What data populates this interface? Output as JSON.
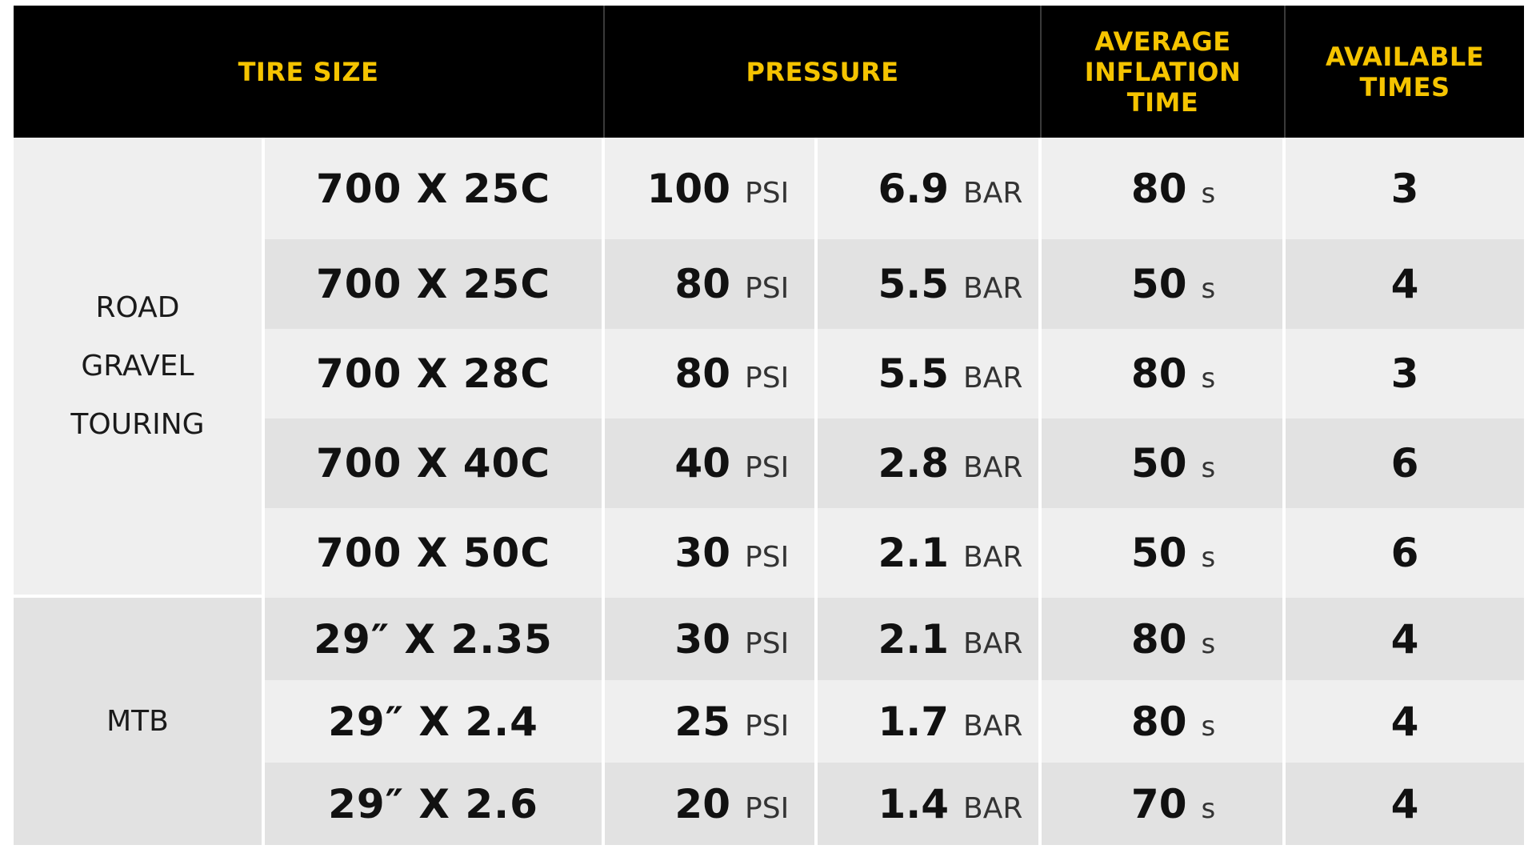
{
  "headers": {
    "tire_size": "TIRE SIZE",
    "pressure": "PRESSURE",
    "avg_time_1": "AVERAGE",
    "avg_time_2": "INFLATION",
    "avg_time_3": "TIME",
    "avail_1": "AVAILABLE",
    "avail_2": "TIMES"
  },
  "categories": {
    "road_1": "ROAD",
    "road_2": "GRAVEL",
    "road_3": "TOURING",
    "mtb": "MTB"
  },
  "rows": [
    {
      "size": "700 X 25C",
      "psi": "100",
      "psi_unit": "PSI",
      "bar": "6.9",
      "bar_unit": "BAR",
      "time": "80",
      "time_unit": "s",
      "avail": "3"
    },
    {
      "size": "700 X 25C",
      "psi": "80",
      "psi_unit": "PSI",
      "bar": "5.5",
      "bar_unit": "BAR",
      "time": "50",
      "time_unit": "s",
      "avail": "4"
    },
    {
      "size": "700 X 28C",
      "psi": "80",
      "psi_unit": "PSI",
      "bar": "5.5",
      "bar_unit": "BAR",
      "time": "80",
      "time_unit": "s",
      "avail": "3"
    },
    {
      "size": "700 X 40C",
      "psi": "40",
      "psi_unit": "PSI",
      "bar": "2.8",
      "bar_unit": "BAR",
      "time": "50",
      "time_unit": "s",
      "avail": "6"
    },
    {
      "size": "700 X 50C",
      "psi": "30",
      "psi_unit": "PSI",
      "bar": "2.1",
      "bar_unit": "BAR",
      "time": "50",
      "time_unit": "s",
      "avail": "6"
    },
    {
      "size": "29″ X 2.35",
      "psi": "30",
      "psi_unit": "PSI",
      "bar": "2.1",
      "bar_unit": "BAR",
      "time": "80",
      "time_unit": "s",
      "avail": "4"
    },
    {
      "size": "29″ X 2.4",
      "psi": "25",
      "psi_unit": "PSI",
      "bar": "1.7",
      "bar_unit": "BAR",
      "time": "80",
      "time_unit": "s",
      "avail": "4"
    },
    {
      "size": "29″ X 2.6",
      "psi": "20",
      "psi_unit": "PSI",
      "bar": "1.4",
      "bar_unit": "BAR",
      "time": "70",
      "time_unit": "s",
      "avail": "4"
    }
  ]
}
